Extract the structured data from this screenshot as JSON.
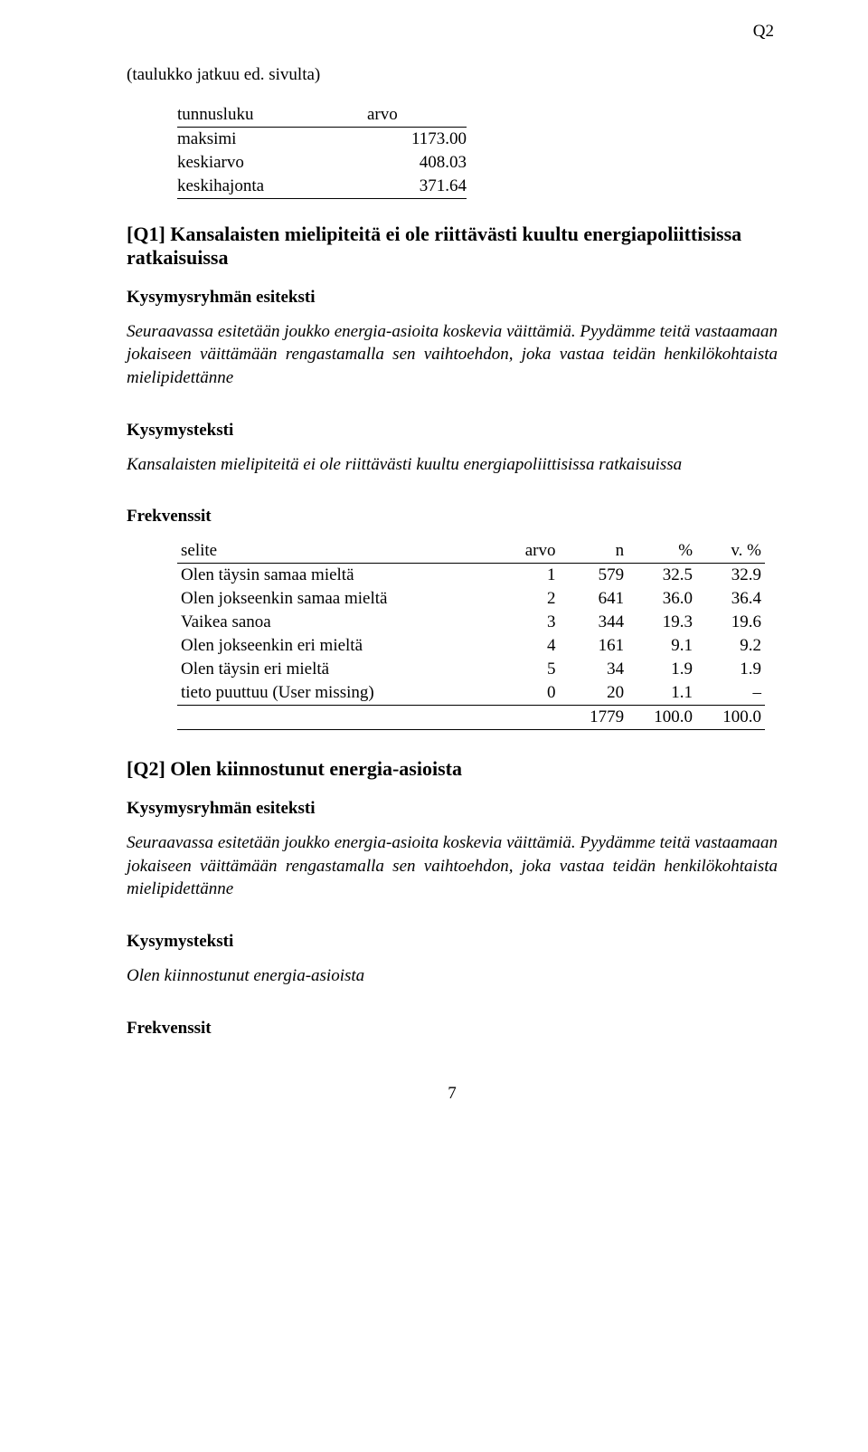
{
  "topRightLabel": "Q2",
  "continuation": "(taulukko jatkuu ed. sivulta)",
  "statsTable": {
    "headers": [
      "tunnusluku",
      "arvo"
    ],
    "rows": [
      {
        "label": "maksimi",
        "value": "1173.00"
      },
      {
        "label": "keskiarvo",
        "value": "408.03"
      },
      {
        "label": "keskihajonta",
        "value": "371.64"
      }
    ]
  },
  "q1Heading": "[Q1] Kansalaisten mielipiteitä ei ole riittävästi kuultu energiapoliittisissa ratkaisuissa",
  "groupPreLabel": "Kysymysryhmän esiteksti",
  "groupPreText": "Seuraavassa esitetään joukko energia-asioita koskevia väittämiä. Pyydämme teitä vastaamaan jokaiseen väittämään rengastamalla sen vaihtoehdon, joka vastaa teidän henkilökohtaista mielipidettänne",
  "qTextLabel": "Kysymysteksti",
  "q1Text": "Kansalaisten mielipiteitä ei ole riittävästi kuultu energiapoliittisissa ratkaisuissa",
  "freqLabel": "Frekvenssit",
  "freqTable": {
    "headers": [
      "selite",
      "arvo",
      "n",
      "%",
      "v. %"
    ],
    "rows": [
      {
        "label": "Olen täysin samaa mieltä",
        "arvo": "1",
        "n": "579",
        "pct": "32.5",
        "vpct": "32.9"
      },
      {
        "label": "Olen jokseenkin samaa mieltä",
        "arvo": "2",
        "n": "641",
        "pct": "36.0",
        "vpct": "36.4"
      },
      {
        "label": "Vaikea sanoa",
        "arvo": "3",
        "n": "344",
        "pct": "19.3",
        "vpct": "19.6"
      },
      {
        "label": "Olen jokseenkin eri mieltä",
        "arvo": "4",
        "n": "161",
        "pct": "9.1",
        "vpct": "9.2"
      },
      {
        "label": "Olen täysin eri mieltä",
        "arvo": "5",
        "n": "34",
        "pct": "1.9",
        "vpct": "1.9"
      },
      {
        "label": "tieto puuttuu (User missing)",
        "arvo": "0",
        "n": "20",
        "pct": "1.1",
        "vpct": "–"
      }
    ],
    "total": {
      "n": "1779",
      "pct": "100.0",
      "vpct": "100.0"
    }
  },
  "q2Heading": "[Q2] Olen kiinnostunut energia-asioista",
  "q2Text": "Olen kiinnostunut energia-asioista",
  "pageNumber": "7"
}
